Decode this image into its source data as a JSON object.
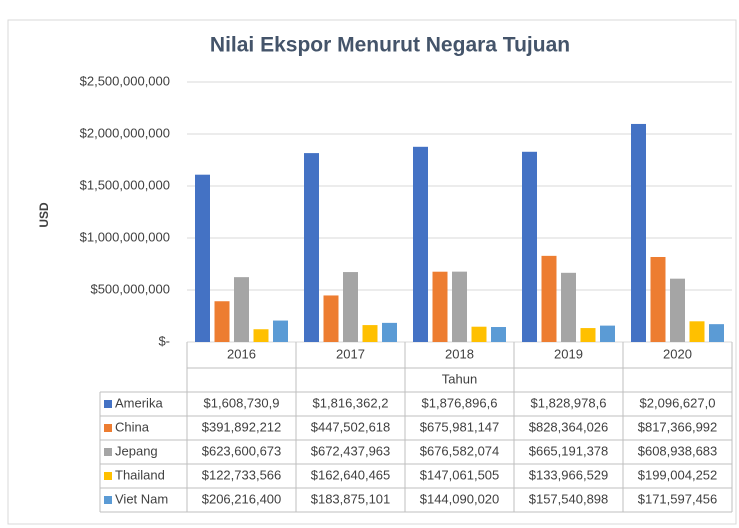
{
  "chart_data": {
    "type": "bar",
    "title": "Nilai Ekspor Menurut Negara Tujuan",
    "y_label": "USD",
    "x_label": "Tahun",
    "categories": [
      "2016",
      "2017",
      "2018",
      "2019",
      "2020"
    ],
    "ylim": [
      0,
      2500000000
    ],
    "yticks": [
      {
        "value": 0,
        "label": "$-"
      },
      {
        "value": 500000000,
        "label": "$500,000,000"
      },
      {
        "value": 1000000000,
        "label": "$1,000,000,000"
      },
      {
        "value": 1500000000,
        "label": "$1,500,000,000"
      },
      {
        "value": 2000000000,
        "label": "$2,000,000,000"
      },
      {
        "value": 2500000000,
        "label": "$2,500,000,000"
      }
    ],
    "grid": true,
    "series": [
      {
        "name": "Amerika",
        "color": "#4472c4",
        "values": [
          1608730900,
          1816362200,
          1876896600,
          1828978600,
          2096627000
        ],
        "value_labels": [
          "$1,608,730,9",
          "$1,816,362,2",
          "$1,876,896,6",
          "$1,828,978,6",
          "$2,096,627,0"
        ]
      },
      {
        "name": "China",
        "color": "#ed7d31",
        "values": [
          391892212,
          447502618,
          675981147,
          828364026,
          817366992
        ],
        "value_labels": [
          "$391,892,212",
          "$447,502,618",
          "$675,981,147",
          "$828,364,026",
          "$817,366,992"
        ]
      },
      {
        "name": "Jepang",
        "color": "#a5a5a5",
        "values": [
          623600673,
          672437963,
          676582074,
          665191378,
          608938683
        ],
        "value_labels": [
          "$623,600,673",
          "$672,437,963",
          "$676,582,074",
          "$665,191,378",
          "$608,938,683"
        ]
      },
      {
        "name": "Thailand",
        "color": "#ffc000",
        "values": [
          122733566,
          162640465,
          147061505,
          133966529,
          199004252
        ],
        "value_labels": [
          "$122,733,566",
          "$162,640,465",
          "$147,061,505",
          "$133,966,529",
          "$199,004,252"
        ]
      },
      {
        "name": "Viet Nam",
        "color": "#5b9bd5",
        "values": [
          206216400,
          183875101,
          144090020,
          157540898,
          171597456
        ],
        "value_labels": [
          "$206,216,400",
          "$183,875,101",
          "$144,090,020",
          "$157,540,898",
          "$171,597,456"
        ]
      }
    ]
  }
}
